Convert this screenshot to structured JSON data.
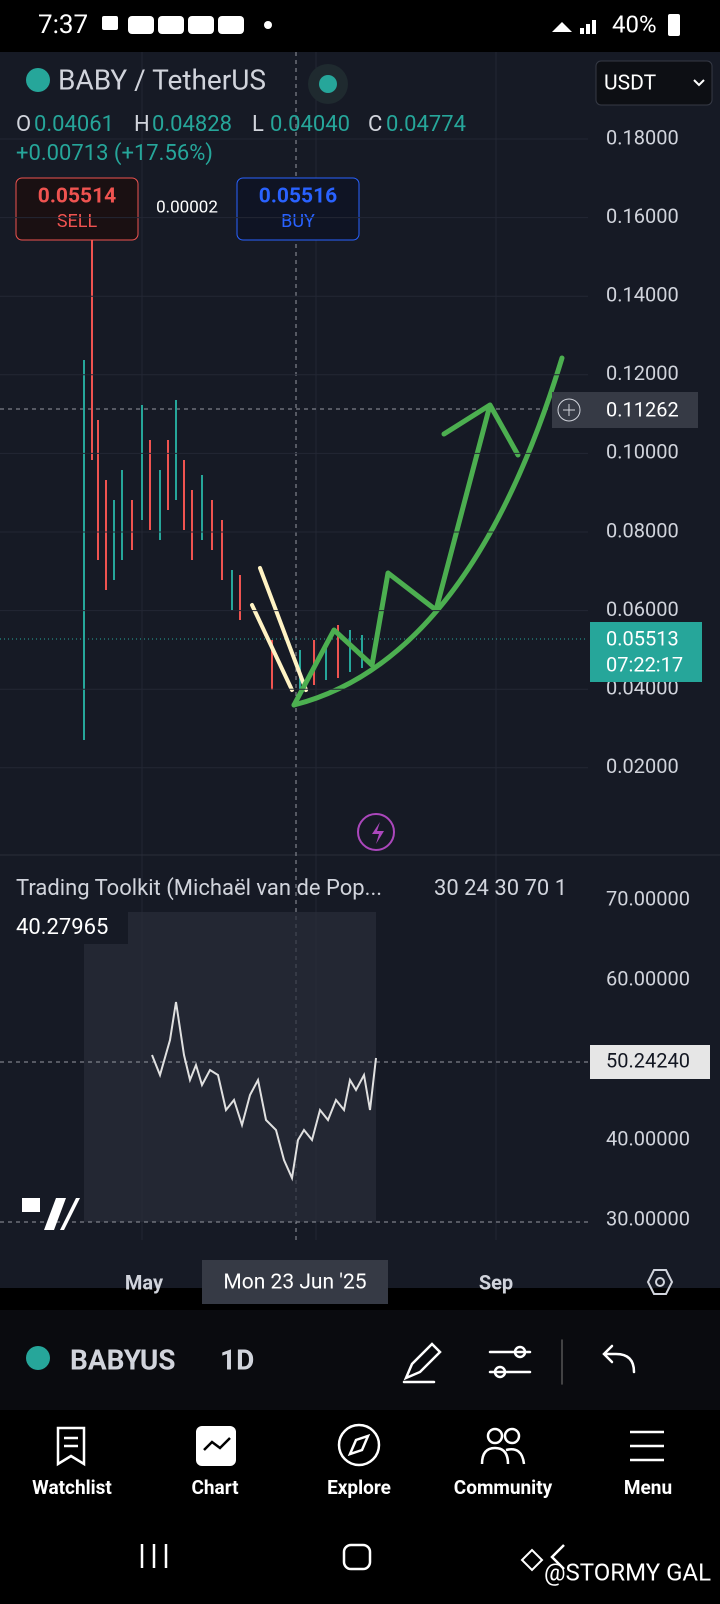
{
  "status_bar": {
    "time": "7:37",
    "battery": "40%"
  },
  "header": {
    "symbol": "BABY / TetherUS",
    "currency": "USDT"
  },
  "ohlc": {
    "o_label": "O",
    "o": "0.04061",
    "h_label": "H",
    "h": "0.04828",
    "l_label": "L",
    "l": "0.04040",
    "c_label": "C",
    "c": "0.04774",
    "change": "+0.00713 (+17.56%)"
  },
  "trade": {
    "sell_price": "0.05514",
    "sell_label": "SELL",
    "spread": "0.00002",
    "buy_price": "0.05516",
    "buy_label": "BUY"
  },
  "price_axis": {
    "ticks": [
      "0.18000",
      "0.16000",
      "0.14000",
      "0.12000",
      "0.10000",
      "0.08000",
      "0.06000",
      "0.04000",
      "0.02000"
    ],
    "crosshair_price": "0.11262",
    "last_price": "0.05513",
    "countdown": "07:22:17"
  },
  "indicator": {
    "title": "Trading Toolkit (Michaël van de Pop...",
    "params": "30 24 30 70 1",
    "value": "40.27965",
    "ticks": [
      "70.00000",
      "60.00000",
      "40.00000",
      "30.00000"
    ],
    "crosshair_value": "50.24240"
  },
  "time_axis": {
    "labels": [
      "May",
      "Sep"
    ],
    "crosshair_date": "Mon 23 Jun '25"
  },
  "toolbar": {
    "symbol": "BABYUS",
    "interval": "1D"
  },
  "nav": {
    "items": [
      "Watchlist",
      "Chart",
      "Explore",
      "Community",
      "Menu"
    ]
  },
  "watermark": "@STORMY GAL"
}
